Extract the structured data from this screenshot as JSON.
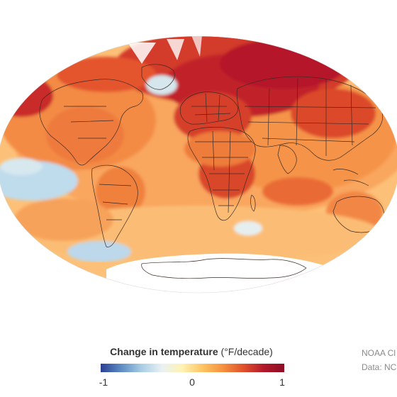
{
  "legend": {
    "title_bold": "Change in temperature",
    "title_unit": "(°F/decade)",
    "min_label": "-1",
    "mid_label": "0",
    "max_label": "1",
    "range": [
      -1,
      1
    ],
    "colors": [
      "#2b3f93",
      "#5d8cc4",
      "#a9cde4",
      "#e9f1f3",
      "#fff2b2",
      "#fdc463",
      "#f59040",
      "#e0502b",
      "#b2182b",
      "#8c0d25"
    ]
  },
  "credit": {
    "line1": "NOAA Cl",
    "line2": "Data: NC"
  },
  "map": {
    "projection": "mollweide",
    "colors": {
      "cool": "#bfdcec",
      "warm": "#fdb168",
      "hot": "#e0482c",
      "very_hot": "#b5162a",
      "no_data": "#ffffff",
      "borders": "#3a2a24"
    }
  }
}
